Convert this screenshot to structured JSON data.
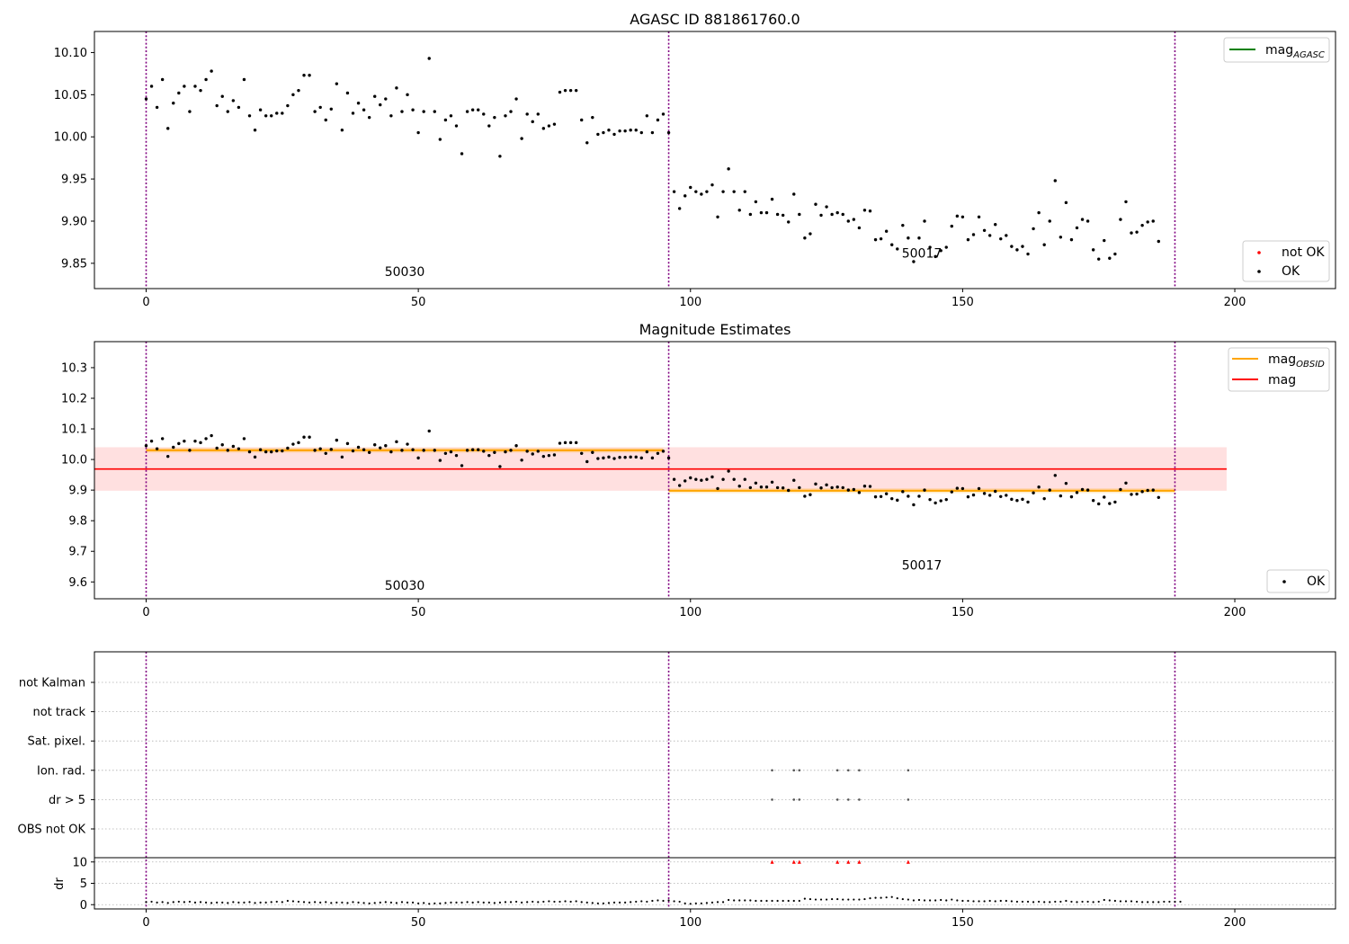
{
  "chart_data": [
    {
      "type": "scatter",
      "title": "AGASC ID 881861760.0",
      "xlabel": "",
      "ylabel": "",
      "xlim": [
        -9.5,
        218.5
      ],
      "ylim": [
        9.82,
        10.125
      ],
      "xticks": [
        0,
        50,
        100,
        150,
        200
      ],
      "yticks": [
        9.85,
        9.9,
        9.95,
        10.0,
        10.05,
        10.1
      ],
      "ytick_labels": [
        "9.85",
        "9.90",
        "9.95",
        "10.00",
        "10.05",
        "10.10"
      ],
      "obs_boundaries": [
        0,
        96,
        189
      ],
      "annotations": [
        {
          "text": "50030",
          "x": 47.5,
          "y": 9.835
        },
        {
          "text": "50017",
          "x": 142.5,
          "y": 9.857
        }
      ],
      "legends": [
        {
          "position": "upper-right",
          "entries": [
            {
              "label": "mag",
              "sub": "AGASC",
              "color": "#008000",
              "kind": "line"
            }
          ]
        },
        {
          "position": "lower-right",
          "entries": [
            {
              "label": "not OK",
              "color": "#ff0000",
              "kind": "dot"
            },
            {
              "label": "OK",
              "color": "#000000",
              "kind": "dot"
            }
          ]
        }
      ],
      "series": [
        {
          "name": "OK",
          "color": "#000000",
          "x_start": 0,
          "values": [
            10.045,
            10.06,
            10.035,
            10.068,
            10.01,
            10.04,
            10.052,
            10.06,
            10.03,
            10.06,
            10.055,
            10.068,
            10.078,
            10.037,
            10.048,
            10.03,
            10.043,
            10.035,
            10.068,
            10.025,
            10.008,
            10.032,
            10.025,
            10.025,
            10.028,
            10.028,
            10.037,
            10.05,
            10.055,
            10.073,
            10.073,
            10.03,
            10.035,
            10.02,
            10.033,
            10.063,
            10.008,
            10.052,
            10.028,
            10.04,
            10.032,
            10.023,
            10.048,
            10.038,
            10.045,
            10.025,
            10.058,
            10.03,
            10.05,
            10.032,
            10.005,
            10.03,
            10.093,
            10.03,
            9.997,
            10.02,
            10.025,
            10.013,
            9.98,
            10.03,
            10.032,
            10.032,
            10.027,
            10.013,
            10.023,
            9.977,
            10.025,
            10.03,
            10.045,
            9.998,
            10.027,
            10.018,
            10.027,
            10.01,
            10.013,
            10.015,
            10.053,
            10.055,
            10.055,
            10.055,
            10.02,
            9.993,
            10.023,
            10.003,
            10.005,
            10.008,
            10.003,
            10.007,
            10.007,
            10.008,
            10.008,
            10.005,
            10.025,
            10.005,
            10.02,
            10.027,
            10.005,
            9.935,
            9.915,
            9.93,
            9.94,
            9.935,
            9.932,
            9.935,
            9.943,
            9.905,
            9.935,
            9.962,
            9.935,
            9.913,
            9.935,
            9.908,
            9.923,
            9.91,
            9.91,
            9.926,
            9.908,
            9.907,
            9.899,
            9.932,
            9.908,
            9.88,
            9.885,
            9.92,
            9.907,
            9.917,
            9.908,
            9.91,
            9.908,
            9.9,
            9.902,
            9.892,
            9.913,
            9.912,
            9.878,
            9.879,
            9.888,
            9.872,
            9.867,
            9.895,
            9.88,
            9.852,
            9.88,
            9.9,
            9.869,
            9.858,
            9.865,
            9.869,
            9.894,
            9.906,
            9.905,
            9.878,
            9.884,
            9.905,
            9.889,
            9.883,
            9.896,
            9.879,
            9.883,
            9.87,
            9.866,
            9.87,
            9.861,
            9.891,
            9.91,
            9.872,
            9.9,
            9.948,
            9.881,
            9.922,
            9.878,
            9.892,
            9.902,
            9.9,
            9.866,
            9.855,
            9.877,
            9.856,
            9.861,
            9.902,
            9.923,
            9.886,
            9.887,
            9.895,
            9.899,
            9.9,
            9.876
          ]
        },
        {
          "name": "not OK",
          "color": "#ff0000",
          "x": [],
          "values": []
        }
      ]
    },
    {
      "type": "scatter",
      "title": "Magnitude Estimates",
      "xlabel": "",
      "ylabel": "",
      "xlim": [
        -9.5,
        218.5
      ],
      "ylim": [
        9.545,
        10.385
      ],
      "xticks": [
        0,
        50,
        100,
        150,
        200
      ],
      "yticks": [
        9.6,
        9.7,
        9.8,
        9.9,
        10.0,
        10.1,
        10.2,
        10.3
      ],
      "ytick_labels": [
        "9.6",
        "9.7",
        "9.8",
        "9.9",
        "10.0",
        "10.1",
        "10.2",
        "10.3"
      ],
      "obs_boundaries": [
        0,
        96,
        189
      ],
      "annotations": [
        {
          "text": "50030",
          "x": 47.5,
          "y": 9.575
        },
        {
          "text": "50017",
          "x": 142.5,
          "y": 9.64
        }
      ],
      "mag": {
        "value": 9.969,
        "band": [
          9.898,
          10.04
        ],
        "x_range": [
          -9.5,
          198.5
        ],
        "color": "#ff0000"
      },
      "mag_obsid": [
        {
          "x_range": [
            0,
            95
          ],
          "value": 10.03,
          "band": [
            10.022,
            10.038
          ]
        },
        {
          "x_range": [
            96,
            189
          ],
          "value": 9.898,
          "band": [
            9.89,
            9.906
          ]
        }
      ],
      "legends": [
        {
          "position": "upper-right",
          "entries": [
            {
              "label": "mag",
              "sub": "OBSID",
              "color": "#ffa500",
              "kind": "line"
            },
            {
              "label": "mag",
              "sub": "",
              "color": "#ff0000",
              "kind": "line"
            }
          ]
        },
        {
          "position": "lower-right",
          "entries": [
            {
              "label": "OK",
              "color": "#000000",
              "kind": "dot"
            }
          ]
        }
      ],
      "series_ref": "same points as panel 1 OK series"
    },
    {
      "type": "scatter",
      "title": "",
      "xlabel": "",
      "ylabel": "dr",
      "xlim": [
        -9.5,
        218.5
      ],
      "xticks": [
        0,
        50,
        100,
        150,
        200
      ],
      "obs_boundaries": [
        0,
        96,
        189
      ],
      "flag_rows": [
        "not Kalman",
        "not track",
        "Sat. pixel.",
        "Ion. rad.",
        "dr > 5",
        "OBS not OK"
      ],
      "flags": {
        "Ion. rad.": [
          115,
          119,
          120,
          127,
          129,
          131,
          140
        ],
        "dr > 5": [
          115,
          119,
          120,
          127,
          129,
          131,
          140
        ]
      },
      "dr_ylim": [
        -1,
        11
      ],
      "dr_yticks": [
        0,
        5,
        10
      ],
      "dr_ytick_labels": [
        "0",
        "5",
        "10"
      ],
      "dr_outliers": {
        "x": [
          115,
          119,
          120,
          127,
          129,
          131,
          140
        ],
        "y": 10,
        "color": "#ff0000"
      },
      "dr_values": [
        0.6,
        0.7,
        0.5,
        0.6,
        0.4,
        0.6,
        0.7,
        0.6,
        0.7,
        0.5,
        0.6,
        0.5,
        0.4,
        0.5,
        0.5,
        0.4,
        0.6,
        0.5,
        0.5,
        0.6,
        0.4,
        0.5,
        0.5,
        0.6,
        0.7,
        0.6,
        0.9,
        0.8,
        0.7,
        0.6,
        0.5,
        0.6,
        0.5,
        0.6,
        0.4,
        0.5,
        0.5,
        0.4,
        0.6,
        0.5,
        0.4,
        0.3,
        0.4,
        0.5,
        0.6,
        0.5,
        0.4,
        0.6,
        0.5,
        0.5,
        0.3,
        0.4,
        0.2,
        0.3,
        0.3,
        0.4,
        0.5,
        0.5,
        0.5,
        0.6,
        0.5,
        0.6,
        0.5,
        0.5,
        0.4,
        0.5,
        0.6,
        0.6,
        0.7,
        0.5,
        0.6,
        0.7,
        0.6,
        0.7,
        0.8,
        0.7,
        0.7,
        0.8,
        0.7,
        0.8,
        0.6,
        0.5,
        0.4,
        0.3,
        0.3,
        0.4,
        0.5,
        0.5,
        0.5,
        0.6,
        0.7,
        0.8,
        0.7,
        0.9,
        1.0,
        0.9,
        1.0,
        0.8,
        0.7,
        0.3,
        0.2,
        0.3,
        0.3,
        0.4,
        0.5,
        0.6,
        0.6,
        1.1,
        1.0,
        1.0,
        1.0,
        1.0,
        0.9,
        0.9,
        0.9,
        0.9,
        0.9,
        0.9,
        0.9,
        0.9,
        0.9,
        1.4,
        1.3,
        1.2,
        1.2,
        1.2,
        1.3,
        1.3,
        1.2,
        1.2,
        1.2,
        1.2,
        1.3,
        1.5,
        1.6,
        1.6,
        1.7,
        1.8,
        1.5,
        1.3,
        1.2,
        1.0,
        1.1,
        1.0,
        1.0,
        1.0,
        1.1,
        1.0,
        1.2,
        1.0,
        0.9,
        0.9,
        0.8,
        0.8,
        0.8,
        0.9,
        0.8,
        0.9,
        0.9,
        0.8,
        0.7,
        0.7,
        0.7,
        0.6,
        0.7,
        0.6,
        0.6,
        0.7,
        0.7,
        0.9,
        0.7,
        0.6,
        0.7,
        0.7,
        0.6,
        0.7,
        1.1,
        1.0,
        0.9,
        0.8,
        0.8,
        0.8,
        0.7,
        0.6,
        0.6,
        0.6,
        0.6,
        0.7,
        0.7,
        0.7,
        0.7
      ]
    }
  ]
}
